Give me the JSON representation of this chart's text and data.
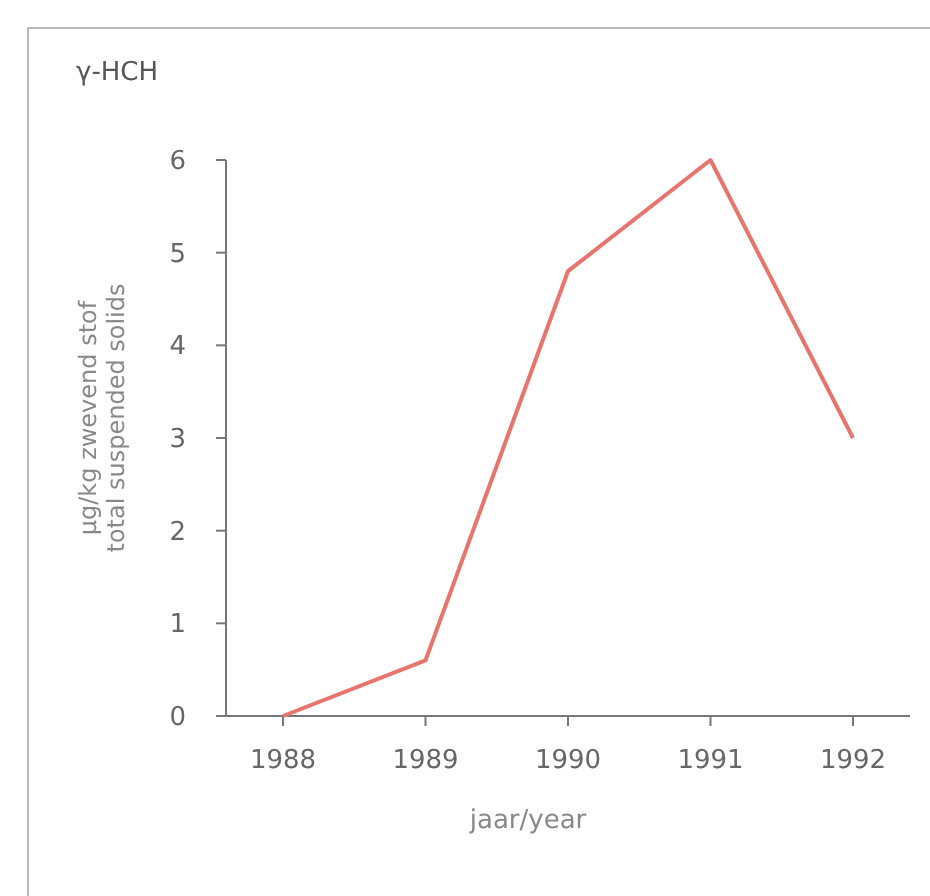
{
  "chart_data": {
    "type": "line",
    "title": "γ-HCH",
    "xlabel": "jaar/year",
    "ylabel": "µg/kg zwevend stof\ntotal suspended solids",
    "x": [
      1988,
      1989,
      1990,
      1991,
      1992
    ],
    "series": [
      {
        "color": "#e8756d",
        "values": [
          0,
          0.6,
          4.8,
          6.0,
          3.0
        ]
      }
    ],
    "xlim": [
      1987.6,
      1992.4
    ],
    "xticks": [
      1988,
      1989,
      1990,
      1991,
      1992
    ],
    "ylim": [
      0,
      6
    ],
    "yticks": [
      0,
      1,
      2,
      3,
      4,
      5,
      6
    ],
    "grid": false,
    "marker": "none",
    "line_style": "solid"
  }
}
